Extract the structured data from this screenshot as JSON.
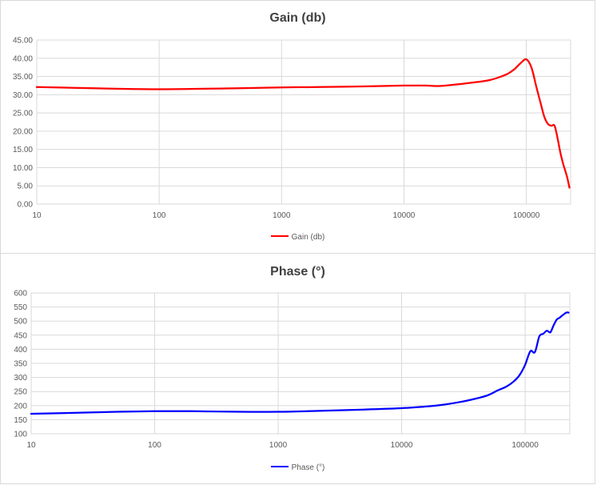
{
  "chart_data": [
    {
      "type": "line",
      "title": "Gain (db)",
      "xscale": "log",
      "xlim": [
        10,
        230000
      ],
      "ylim": [
        0,
        45
      ],
      "grid": true,
      "legend_position": "bottom",
      "y_ticks": [
        "0.00",
        "5.00",
        "10.00",
        "15.00",
        "20.00",
        "25.00",
        "30.00",
        "35.00",
        "40.00",
        "45.00"
      ],
      "x_ticks": [
        "10",
        "100",
        "1000",
        "10000",
        "100000"
      ],
      "series": [
        {
          "name": "Gain (db)",
          "color": "#ff0000",
          "x": [
            10,
            20,
            50,
            100,
            200,
            500,
            1000,
            2000,
            5000,
            10000,
            15000,
            20000,
            30000,
            40000,
            50000,
            60000,
            70000,
            80000,
            90000,
            100000,
            110000,
            120000,
            130000,
            140000,
            150000,
            160000,
            170000,
            180000,
            190000,
            200000,
            215000,
            225000
          ],
          "values": [
            32.1,
            31.9,
            31.6,
            31.5,
            31.6,
            31.8,
            32.0,
            32.1,
            32.3,
            32.5,
            32.5,
            32.4,
            33.0,
            33.5,
            34.0,
            34.8,
            35.7,
            37.0,
            38.7,
            39.7,
            37.5,
            32.5,
            28.0,
            24.0,
            22.0,
            21.5,
            21.5,
            18.0,
            14.0,
            11.0,
            7.5,
            4.5
          ]
        }
      ]
    },
    {
      "type": "line",
      "title": "Phase (°)",
      "xscale": "log",
      "xlim": [
        10,
        230000
      ],
      "ylim": [
        100,
        600
      ],
      "grid": true,
      "legend_position": "bottom",
      "y_ticks": [
        "100",
        "150",
        "200",
        "250",
        "300",
        "350",
        "400",
        "450",
        "500",
        "550",
        "600"
      ],
      "x_ticks": [
        "10",
        "100",
        "1000",
        "10000",
        "100000"
      ],
      "series": [
        {
          "name": "Phase (°)",
          "color": "#0000ff",
          "x": [
            10,
            20,
            50,
            100,
            200,
            500,
            1000,
            2000,
            5000,
            10000,
            15000,
            20000,
            30000,
            40000,
            50000,
            60000,
            70000,
            80000,
            90000,
            100000,
            110000,
            120000,
            130000,
            140000,
            150000,
            160000,
            170000,
            180000,
            190000,
            200000,
            215000,
            225000
          ],
          "values": [
            171,
            174,
            178,
            180,
            180,
            178,
            178,
            181,
            186,
            191,
            196,
            201,
            213,
            225,
            237,
            254,
            267,
            284,
            308,
            345,
            393,
            390,
            445,
            455,
            466,
            460,
            485,
            505,
            512,
            520,
            530,
            530
          ]
        }
      ]
    }
  ]
}
